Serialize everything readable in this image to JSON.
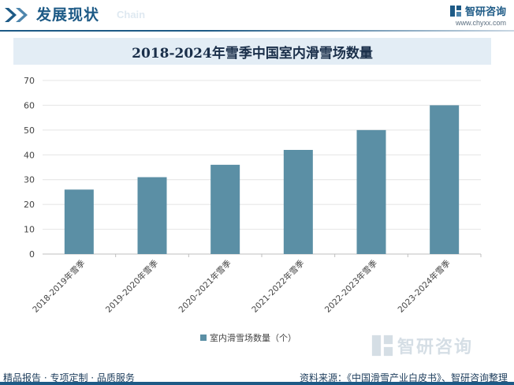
{
  "header": {
    "section_title": "发展现状",
    "section_subtitle": "Chain",
    "brand_name": "智研咨询",
    "brand_url": "www.chyxx.com"
  },
  "chart_data": {
    "type": "bar",
    "title": "2018-2024年雪季中国室内滑雪场数量",
    "categories": [
      "2018-2019年雪季",
      "2019-2020年雪季",
      "2020-2021年雪季",
      "2021-2022年雪季",
      "2022-2023年雪季",
      "2023-2024年雪季"
    ],
    "series": [
      {
        "name": "室内滑雪场数量（个）",
        "values": [
          26,
          31,
          36,
          42,
          50,
          60
        ],
        "color": "#5b8fa5"
      }
    ],
    "xlabel": "",
    "ylabel": "",
    "ylim": [
      0,
      70
    ],
    "yticks": [
      0,
      10,
      20,
      30,
      40,
      50,
      60,
      70
    ],
    "grid": true,
    "legend_position": "bottom"
  },
  "watermark": {
    "text": "智研咨询"
  },
  "footer": {
    "left": "精品报告 · 专项定制 · 品质服务",
    "right": "资料来源：《中国滑雪产业白皮书》、智研咨询整理"
  }
}
